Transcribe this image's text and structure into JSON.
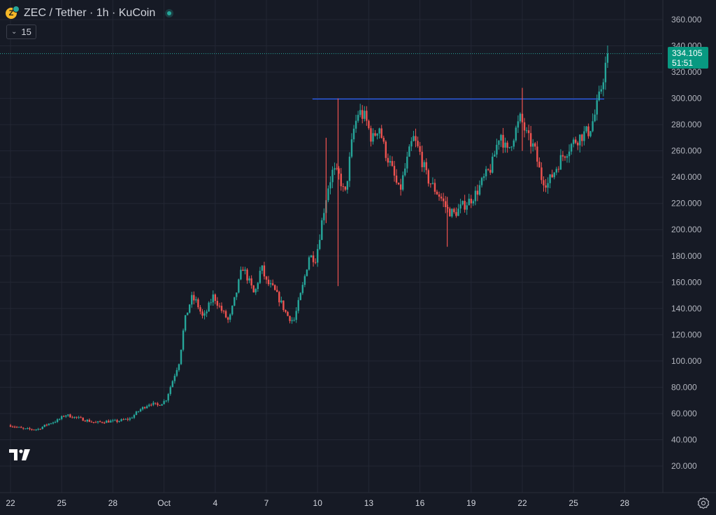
{
  "header": {
    "coin_icon_label": "Z",
    "title": "ZEC / Tether · 1h · KuCoin",
    "indicator_label": "15"
  },
  "price_tag": {
    "price": "334.105",
    "countdown": "51:51"
  },
  "colors": {
    "background": "#161a25",
    "grid": "#232734",
    "up": "#26a69a",
    "down": "#ef5350",
    "line": "#2962ff",
    "label": "#089981"
  },
  "chart_data": {
    "type": "candlestick",
    "title": "ZEC / Tether · 1h · KuCoin",
    "y_ticks": [
      "360.000",
      "340.000",
      "320.000",
      "300.000",
      "280.000",
      "260.000",
      "240.000",
      "220.000",
      "200.000",
      "180.000",
      "160.000",
      "140.000",
      "120.000",
      "100.000",
      "80.000",
      "60.000",
      "40.000",
      "20.000"
    ],
    "ylim": [
      20,
      360
    ],
    "x_ticks": [
      {
        "label": "22",
        "day": 0
      },
      {
        "label": "25",
        "day": 3
      },
      {
        "label": "28",
        "day": 6
      },
      {
        "label": "Oct",
        "day": 9
      },
      {
        "label": "4",
        "day": 12
      },
      {
        "label": "7",
        "day": 15
      },
      {
        "label": "10",
        "day": 18
      },
      {
        "label": "13",
        "day": 21
      },
      {
        "label": "16",
        "day": 24
      },
      {
        "label": "19",
        "day": 27
      },
      {
        "label": "22",
        "day": 30
      },
      {
        "label": "25",
        "day": 33
      },
      {
        "label": "28",
        "day": 36
      }
    ],
    "x_unit": "days since Sep 22",
    "xlim": [
      -0.2,
      39.3
    ],
    "grid": true,
    "horizontal_line": {
      "price": 299.5,
      "from_day": 17.7,
      "to_day": 34.8
    },
    "last_price": 334.105,
    "price_path": [
      [
        0,
        51
      ],
      [
        0.8,
        48
      ],
      [
        1.6,
        48
      ],
      [
        2.2,
        52
      ],
      [
        2.8,
        55
      ],
      [
        3.2,
        59
      ],
      [
        3.8,
        57
      ],
      [
        4.4,
        55
      ],
      [
        5,
        53
      ],
      [
        5.6,
        54
      ],
      [
        6.2,
        54
      ],
      [
        7,
        56
      ],
      [
        7.6,
        63
      ],
      [
        8.2,
        68
      ],
      [
        8.6,
        66
      ],
      [
        9.1,
        70
      ],
      [
        9.5,
        85
      ],
      [
        9.9,
        100
      ],
      [
        10.2,
        130
      ],
      [
        10.6,
        148
      ],
      [
        10.9,
        145
      ],
      [
        11.3,
        132
      ],
      [
        11.9,
        150
      ],
      [
        12.3,
        140
      ],
      [
        12.8,
        130
      ],
      [
        13.2,
        150
      ],
      [
        13.6,
        172
      ],
      [
        14,
        160
      ],
      [
        14.3,
        150
      ],
      [
        14.7,
        172
      ],
      [
        15,
        160
      ],
      [
        15.4,
        155
      ],
      [
        15.8,
        146
      ],
      [
        16.2,
        135
      ],
      [
        16.6,
        130
      ],
      [
        17.1,
        155
      ],
      [
        17.5,
        180
      ],
      [
        17.9,
        178
      ],
      [
        18.3,
        210
      ],
      [
        18.6,
        232
      ],
      [
        18.9,
        245
      ],
      [
        19.3,
        240
      ],
      [
        19.6,
        225
      ],
      [
        20.1,
        275
      ],
      [
        20.4,
        290
      ],
      [
        20.8,
        285
      ],
      [
        21.2,
        268
      ],
      [
        21.6,
        280
      ],
      [
        21.9,
        262
      ],
      [
        22.3,
        248
      ],
      [
        22.8,
        228
      ],
      [
        23.1,
        245
      ],
      [
        23.6,
        270
      ],
      [
        24,
        258
      ],
      [
        24.4,
        240
      ],
      [
        24.8,
        232
      ],
      [
        25.2,
        225
      ],
      [
        25.6,
        215
      ],
      [
        26,
        212
      ],
      [
        26.5,
        218
      ],
      [
        26.9,
        222
      ],
      [
        27.3,
        228
      ],
      [
        27.8,
        240
      ],
      [
        28.2,
        248
      ],
      [
        28.7,
        275
      ],
      [
        29.1,
        258
      ],
      [
        29.5,
        272
      ],
      [
        29.9,
        285
      ],
      [
        30.3,
        270
      ],
      [
        30.7,
        262
      ],
      [
        31.1,
        240
      ],
      [
        31.5,
        235
      ],
      [
        31.9,
        245
      ],
      [
        32.3,
        255
      ],
      [
        32.7,
        262
      ],
      [
        33.1,
        268
      ],
      [
        33.5,
        272
      ],
      [
        33.9,
        275
      ],
      [
        34.2,
        285
      ],
      [
        34.5,
        300
      ],
      [
        34.8,
        320
      ],
      [
        35.0,
        334.105
      ]
    ],
    "wicks": [
      {
        "day": 19.2,
        "high": 300,
        "low": 157
      },
      {
        "day": 18.5,
        "high": 270,
        "low": 205
      },
      {
        "day": 30.0,
        "high": 308,
        "low": 260
      },
      {
        "day": 25.6,
        "high": 225,
        "low": 187
      }
    ]
  }
}
